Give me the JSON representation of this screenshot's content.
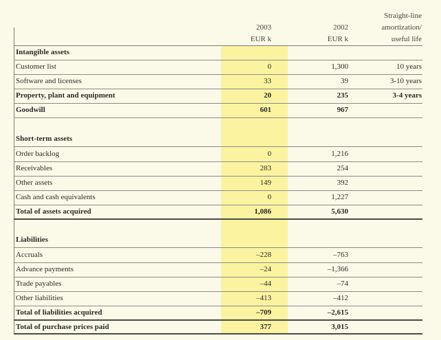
{
  "header": {
    "col_2003": "2003",
    "col_2002": "2002",
    "unit_2003": "EUR k",
    "unit_2002": "EUR k",
    "amort_line1": "Straight-line",
    "amort_line2": "amortization/",
    "amort_line3": "useful life"
  },
  "colors": {
    "highlight": "#fbf3a0",
    "background": "#fbfae8",
    "rule": "#7a7a7a"
  },
  "rows": [
    {
      "label": "Intangible assets",
      "v2003": "",
      "v2002": "",
      "amort": "",
      "style": "section"
    },
    {
      "label": "Customer list",
      "v2003": "0",
      "v2002": "1,300",
      "amort": "10 years",
      "style": "normal"
    },
    {
      "label": "Software and licenses",
      "v2003": "33",
      "v2002": "39",
      "amort": "3-10 years",
      "style": "normal"
    },
    {
      "label": "Property, plant and equipment",
      "v2003": "20",
      "v2002": "235",
      "amort": "3-4 years",
      "style": "bold"
    },
    {
      "label": "Goodwill",
      "v2003": "601",
      "v2002": "967",
      "amort": "",
      "style": "bold"
    },
    {
      "label": "Short-term assets",
      "v2003": "",
      "v2002": "",
      "amort": "",
      "style": "section"
    },
    {
      "label": "Order backlog",
      "v2003": "0",
      "v2002": "1,216",
      "amort": "",
      "style": "normal"
    },
    {
      "label": "Receivables",
      "v2003": "283",
      "v2002": "254",
      "amort": "",
      "style": "normal"
    },
    {
      "label": "Other assets",
      "v2003": "149",
      "v2002": "392",
      "amort": "",
      "style": "normal"
    },
    {
      "label": "Cash and cash equivalents",
      "v2003": "0",
      "v2002": "1,227",
      "amort": "",
      "style": "normal"
    },
    {
      "label": "Total of assets acquired",
      "v2003": "1,086",
      "v2002": "5,630",
      "amort": "",
      "style": "total"
    },
    {
      "label": "Liabilities",
      "v2003": "",
      "v2002": "",
      "amort": "",
      "style": "section"
    },
    {
      "label": "Accruals",
      "v2003": "–228",
      "v2002": "–763",
      "amort": "",
      "style": "normal"
    },
    {
      "label": "Advance payments",
      "v2003": "–24",
      "v2002": "–1,366",
      "amort": "",
      "style": "normal"
    },
    {
      "label": "Trade payables",
      "v2003": "–44",
      "v2002": "–74",
      "amort": "",
      "style": "normal"
    },
    {
      "label": "Other liabilities",
      "v2003": "–413",
      "v2002": "–412",
      "amort": "",
      "style": "normal"
    },
    {
      "label": "Total of liabilities acquired",
      "v2003": "–709",
      "v2002": "–2,615",
      "amort": "",
      "style": "total"
    },
    {
      "label": "Total of purchase prices paid",
      "v2003": "377",
      "v2002": "3,015",
      "amort": "",
      "style": "total"
    }
  ]
}
